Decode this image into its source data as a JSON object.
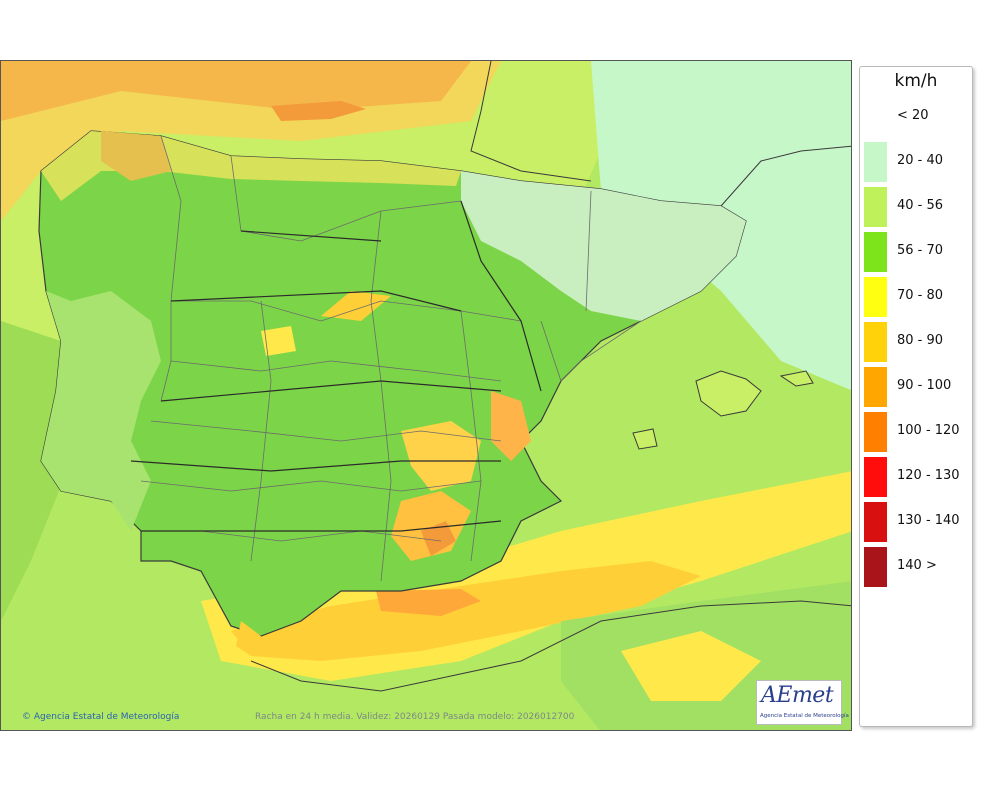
{
  "map": {
    "variable_description": "Racha en 24 h media. Validez: 20260129 Pasada modelo: 2026012700",
    "copyright_text": "Agencia Estatal de Meteorología",
    "copyright_symbol": "©",
    "logo_text": "AEmet",
    "logo_subtitle": "Agencia Estatal de Meteorología"
  },
  "legend": {
    "unit": "km/h",
    "classes": [
      {
        "label": "< 20",
        "color": "#ffffff"
      },
      {
        "label": "20 - 40",
        "color": "#c6f7c8"
      },
      {
        "label": "40 - 56",
        "color": "#bff15a"
      },
      {
        "label": "56 - 70",
        "color": "#7de31b"
      },
      {
        "label": "70 - 80",
        "color": "#ffff12"
      },
      {
        "label": "80 - 90",
        "color": "#ffd20a"
      },
      {
        "label": "90 - 100",
        "color": "#ffa600"
      },
      {
        "label": "100 - 120",
        "color": "#ff7f00"
      },
      {
        "label": "120 - 130",
        "color": "#ff0d0d"
      },
      {
        "label": "130 - 140",
        "color": "#d91010"
      },
      {
        "label": "140 >",
        "color": "#a8141a"
      }
    ]
  }
}
